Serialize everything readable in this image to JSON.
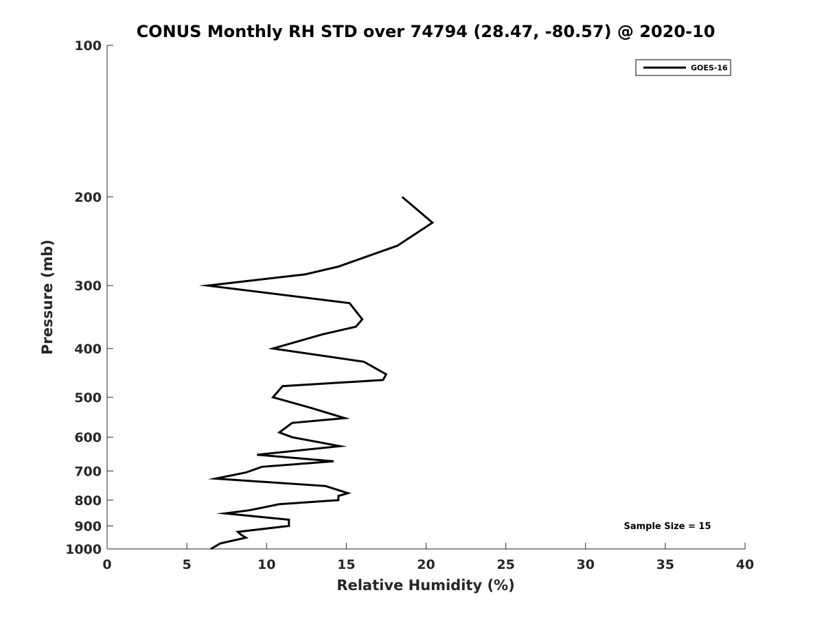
{
  "chart_data": {
    "type": "line",
    "title": "CONUS Monthly RH STD over 74794 (28.47, -80.57) @ 2020-10",
    "xlabel": "Relative Humidity (%)",
    "ylabel": "Pressure (mb)",
    "xlim": [
      0,
      40
    ],
    "ylim": [
      1000,
      100
    ],
    "y_scale": "log",
    "y_inverted": true,
    "grid": false,
    "x_ticks": [
      0,
      5,
      10,
      15,
      20,
      25,
      30,
      35,
      40
    ],
    "x_tick_labels": [
      "0",
      "5",
      "10",
      "15",
      "20",
      "25",
      "30",
      "35",
      "40"
    ],
    "y_ticks": [
      100,
      200,
      300,
      400,
      500,
      600,
      700,
      800,
      900,
      1000
    ],
    "y_tick_labels": [
      "100",
      "200",
      "300",
      "400",
      "500",
      "600",
      "700",
      "800",
      "900",
      "1000"
    ],
    "legend": {
      "location": "top-right",
      "entries": [
        "GOES-16"
      ]
    },
    "annotation": "Sample Size = 15",
    "series": [
      {
        "name": "GOES-16",
        "color": "#000000",
        "x": [
          18.5,
          20.4,
          18.2,
          14.5,
          12.4,
          6.3,
          15.2,
          16.0,
          15.6,
          13.5,
          10.4,
          16.1,
          17.5,
          17.3,
          11.0,
          10.4,
          12.8,
          14.9,
          11.6,
          10.8,
          11.6,
          14.6,
          9.4,
          14.2,
          9.7,
          8.7,
          6.8,
          13.7,
          15.1,
          14.5,
          14.5,
          10.8,
          8.9,
          7.4,
          11.4,
          11.4,
          8.2,
          8.4,
          8.7,
          7.1,
          6.5
        ],
        "y": [
          200,
          225,
          250,
          275,
          285,
          300,
          325,
          350,
          362,
          375,
          400,
          425,
          450,
          462,
          475,
          500,
          525,
          550,
          562,
          587,
          600,
          625,
          650,
          670,
          687,
          705,
          725,
          750,
          775,
          785,
          800,
          815,
          838,
          850,
          875,
          900,
          925,
          937,
          950,
          975,
          1000
        ]
      }
    ]
  }
}
